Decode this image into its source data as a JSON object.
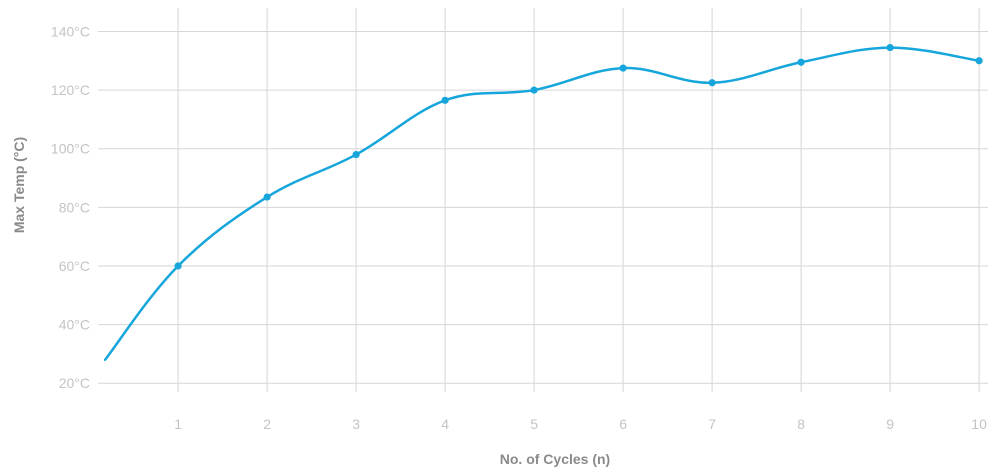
{
  "chart_data": {
    "type": "line",
    "xlabel": "No. of Cycles (n)",
    "ylabel": "Max Temp (°C)",
    "xlim": [
      0.1,
      10.1
    ],
    "ylim": [
      17,
      148
    ],
    "x_ticks": [
      1,
      2,
      3,
      4,
      5,
      6,
      7,
      8,
      9,
      10
    ],
    "x_tick_labels": [
      "1",
      "2",
      "3",
      "4",
      "5",
      "6",
      "7",
      "8",
      "9",
      "10"
    ],
    "y_ticks": [
      20,
      40,
      60,
      80,
      100,
      120,
      140
    ],
    "y_tick_labels": [
      "20°C",
      "40°C",
      "60°C",
      "80°C",
      "100°C",
      "120°C",
      "140°C"
    ],
    "grid": true,
    "series": [
      {
        "color": "#16a6dc",
        "x": [
          0.18,
          1,
          2,
          3,
          4,
          5,
          6,
          7,
          8,
          9,
          10
        ],
        "y": [
          28,
          60,
          83.5,
          98,
          116.5,
          120,
          127.5,
          122.5,
          129.5,
          134.5,
          130
        ],
        "markers": [
          false,
          true,
          true,
          true,
          true,
          true,
          true,
          true,
          true,
          true,
          true
        ]
      }
    ]
  }
}
